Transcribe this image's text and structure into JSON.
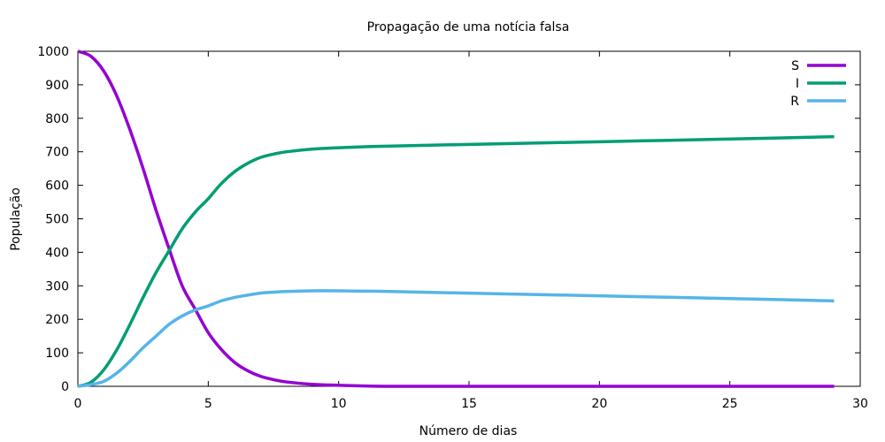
{
  "chart_data": {
    "type": "line",
    "title": "Propagação de uma notícia falsa",
    "xlabel": "Número de dias",
    "ylabel": "População",
    "xlim": [
      0,
      30
    ],
    "ylim": [
      0,
      1000
    ],
    "x_ticks": [
      0,
      5,
      10,
      15,
      20,
      25,
      30
    ],
    "y_ticks": [
      0,
      100,
      200,
      300,
      400,
      500,
      600,
      700,
      800,
      900,
      1000
    ],
    "grid": false,
    "legend_position": "top-right",
    "x": [
      0,
      0.5,
      1,
      1.5,
      2,
      2.5,
      3,
      3.5,
      4,
      4.5,
      5,
      5.5,
      6,
      6.5,
      7,
      7.5,
      8,
      9,
      10,
      11,
      12,
      15,
      20,
      25,
      29
    ],
    "series": [
      {
        "name": "S",
        "color": "#9400d3",
        "values": [
          1000,
          985,
          940,
          865,
          765,
          650,
          525,
          410,
          300,
          230,
          160,
          110,
          72,
          47,
          30,
          20,
          13,
          6,
          3,
          1,
          0,
          0,
          0,
          0,
          0
        ]
      },
      {
        "name": "I",
        "color": "#009e73",
        "values": [
          0,
          12,
          50,
          110,
          185,
          265,
          340,
          405,
          470,
          520,
          560,
          605,
          640,
          665,
          683,
          693,
          700,
          708,
          712,
          715,
          717,
          722,
          730,
          738,
          745
        ]
      },
      {
        "name": "R",
        "color": "#56b4e9",
        "values": [
          0,
          5,
          15,
          40,
          75,
          115,
          150,
          185,
          210,
          228,
          240,
          255,
          265,
          272,
          278,
          281,
          283,
          285,
          285,
          284,
          283,
          278,
          270,
          262,
          255
        ]
      }
    ]
  }
}
